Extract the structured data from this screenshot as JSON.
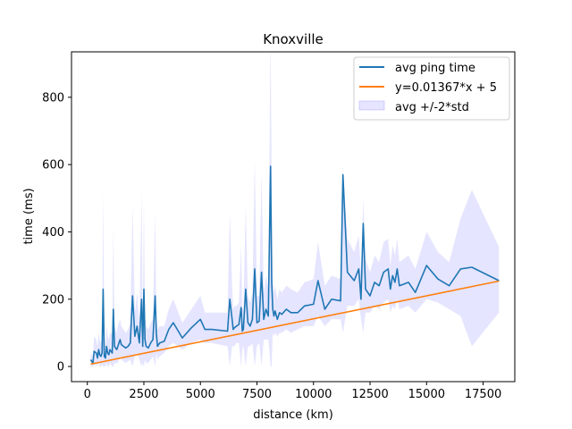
{
  "chart_data": {
    "type": "line",
    "title": "Knoxville",
    "xlabel": "distance (km)",
    "ylabel": "time (ms)",
    "xlim": [
      -700,
      18900
    ],
    "ylim": [
      -45,
      935
    ],
    "xticks": [
      0,
      2500,
      5000,
      7500,
      10000,
      12500,
      15000,
      17500
    ],
    "yticks": [
      0,
      200,
      400,
      600,
      800
    ],
    "grid": false,
    "legend_position": "top-right",
    "series": [
      {
        "name": "avg ping time",
        "color": "#1f77b4",
        "kind": "line",
        "x": [
          150,
          250,
          300,
          400,
          450,
          500,
          550,
          600,
          650,
          700,
          750,
          800,
          850,
          900,
          950,
          1000,
          1050,
          1100,
          1150,
          1200,
          1250,
          1300,
          1350,
          1400,
          1450,
          1500,
          1600,
          1700,
          1800,
          1900,
          2000,
          2100,
          2200,
          2300,
          2400,
          2450,
          2500,
          2550,
          2600,
          2700,
          2800,
          2900,
          3000,
          3050,
          3100,
          3200,
          3400,
          3600,
          3800,
          4200,
          4600,
          5000,
          5200,
          5500,
          6200,
          6300,
          6400,
          6450,
          6500,
          6600,
          6700,
          6800,
          6850,
          6900,
          7000,
          7100,
          7200,
          7300,
          7400,
          7500,
          7600,
          7700,
          7800,
          7900,
          8000,
          8100,
          8150,
          8200,
          8250,
          8300,
          8400,
          8500,
          8600,
          8800,
          9000,
          9300,
          9600,
          10000,
          10200,
          10500,
          10800,
          11200,
          11300,
          11500,
          11800,
          12000,
          12100,
          12200,
          12300,
          12500,
          12700,
          12900,
          13100,
          13300,
          13400,
          13500,
          13600,
          13700,
          13800,
          14200,
          14500,
          15000,
          15500,
          16000,
          16500,
          17000,
          18200
        ],
        "y": [
          20,
          10,
          45,
          40,
          25,
          50,
          35,
          30,
          40,
          230,
          30,
          25,
          60,
          40,
          35,
          50,
          45,
          40,
          170,
          60,
          55,
          50,
          60,
          70,
          80,
          65,
          60,
          55,
          60,
          70,
          210,
          90,
          120,
          70,
          200,
          60,
          230,
          80,
          60,
          55,
          70,
          80,
          210,
          100,
          60,
          70,
          75,
          110,
          130,
          85,
          115,
          140,
          110,
          110,
          105,
          200,
          140,
          110,
          115,
          120,
          125,
          175,
          105,
          110,
          230,
          130,
          120,
          140,
          290,
          130,
          135,
          280,
          140,
          170,
          150,
          595,
          250,
          170,
          150,
          165,
          140,
          160,
          155,
          170,
          160,
          160,
          180,
          185,
          255,
          170,
          200,
          195,
          570,
          280,
          255,
          290,
          200,
          425,
          230,
          210,
          250,
          240,
          280,
          290,
          230,
          270,
          250,
          290,
          240,
          250,
          220,
          300,
          260,
          240,
          290,
          295,
          255
        ],
        "band": {
          "name": "avg +/-2*std",
          "color": "#0000ff",
          "alpha": 0.1,
          "lower": [
            0,
            0,
            5,
            5,
            0,
            10,
            0,
            0,
            5,
            0,
            0,
            0,
            10,
            0,
            0,
            10,
            5,
            0,
            0,
            10,
            10,
            10,
            10,
            20,
            30,
            20,
            15,
            10,
            15,
            20,
            0,
            30,
            40,
            20,
            0,
            10,
            0,
            20,
            10,
            10,
            20,
            30,
            0,
            40,
            20,
            30,
            40,
            60,
            70,
            50,
            70,
            80,
            70,
            70,
            60,
            0,
            60,
            60,
            60,
            70,
            70,
            0,
            50,
            60,
            0,
            60,
            60,
            70,
            0,
            60,
            70,
            0,
            80,
            80,
            80,
            0,
            0,
            100,
            90,
            100,
            90,
            100,
            100,
            110,
            100,
            110,
            120,
            120,
            150,
            120,
            140,
            140,
            100,
            180,
            180,
            200,
            140,
            100,
            160,
            160,
            180,
            170,
            190,
            200,
            160,
            180,
            170,
            200,
            170,
            180,
            160,
            200,
            190,
            170,
            150,
            60,
            160
          ],
          "upper": [
            40,
            30,
            90,
            80,
            60,
            100,
            80,
            70,
            80,
            520,
            70,
            60,
            120,
            90,
            80,
            100,
            100,
            90,
            420,
            120,
            110,
            100,
            120,
            130,
            140,
            120,
            110,
            100,
            110,
            130,
            480,
            160,
            220,
            130,
            520,
            120,
            500,
            150,
            120,
            110,
            130,
            140,
            460,
            180,
            110,
            120,
            120,
            170,
            200,
            130,
            170,
            210,
            160,
            160,
            160,
            460,
            240,
            170,
            180,
            180,
            190,
            360,
            170,
            170,
            480,
            210,
            190,
            220,
            620,
            210,
            210,
            580,
            220,
            270,
            230,
            1000,
            540,
            260,
            220,
            240,
            200,
            230,
            220,
            240,
            230,
            220,
            250,
            260,
            370,
            240,
            270,
            260,
            590,
            380,
            340,
            390,
            280,
            500,
            320,
            280,
            330,
            310,
            370,
            380,
            300,
            360,
            330,
            380,
            310,
            330,
            290,
            400,
            340,
            310,
            440,
            525,
            355
          ]
        }
      },
      {
        "name": "y=0.01367*x + 5",
        "color": "#ff7f0e",
        "kind": "line",
        "x": [
          150,
          18200
        ],
        "y": [
          7.05,
          253.8
        ]
      }
    ]
  }
}
